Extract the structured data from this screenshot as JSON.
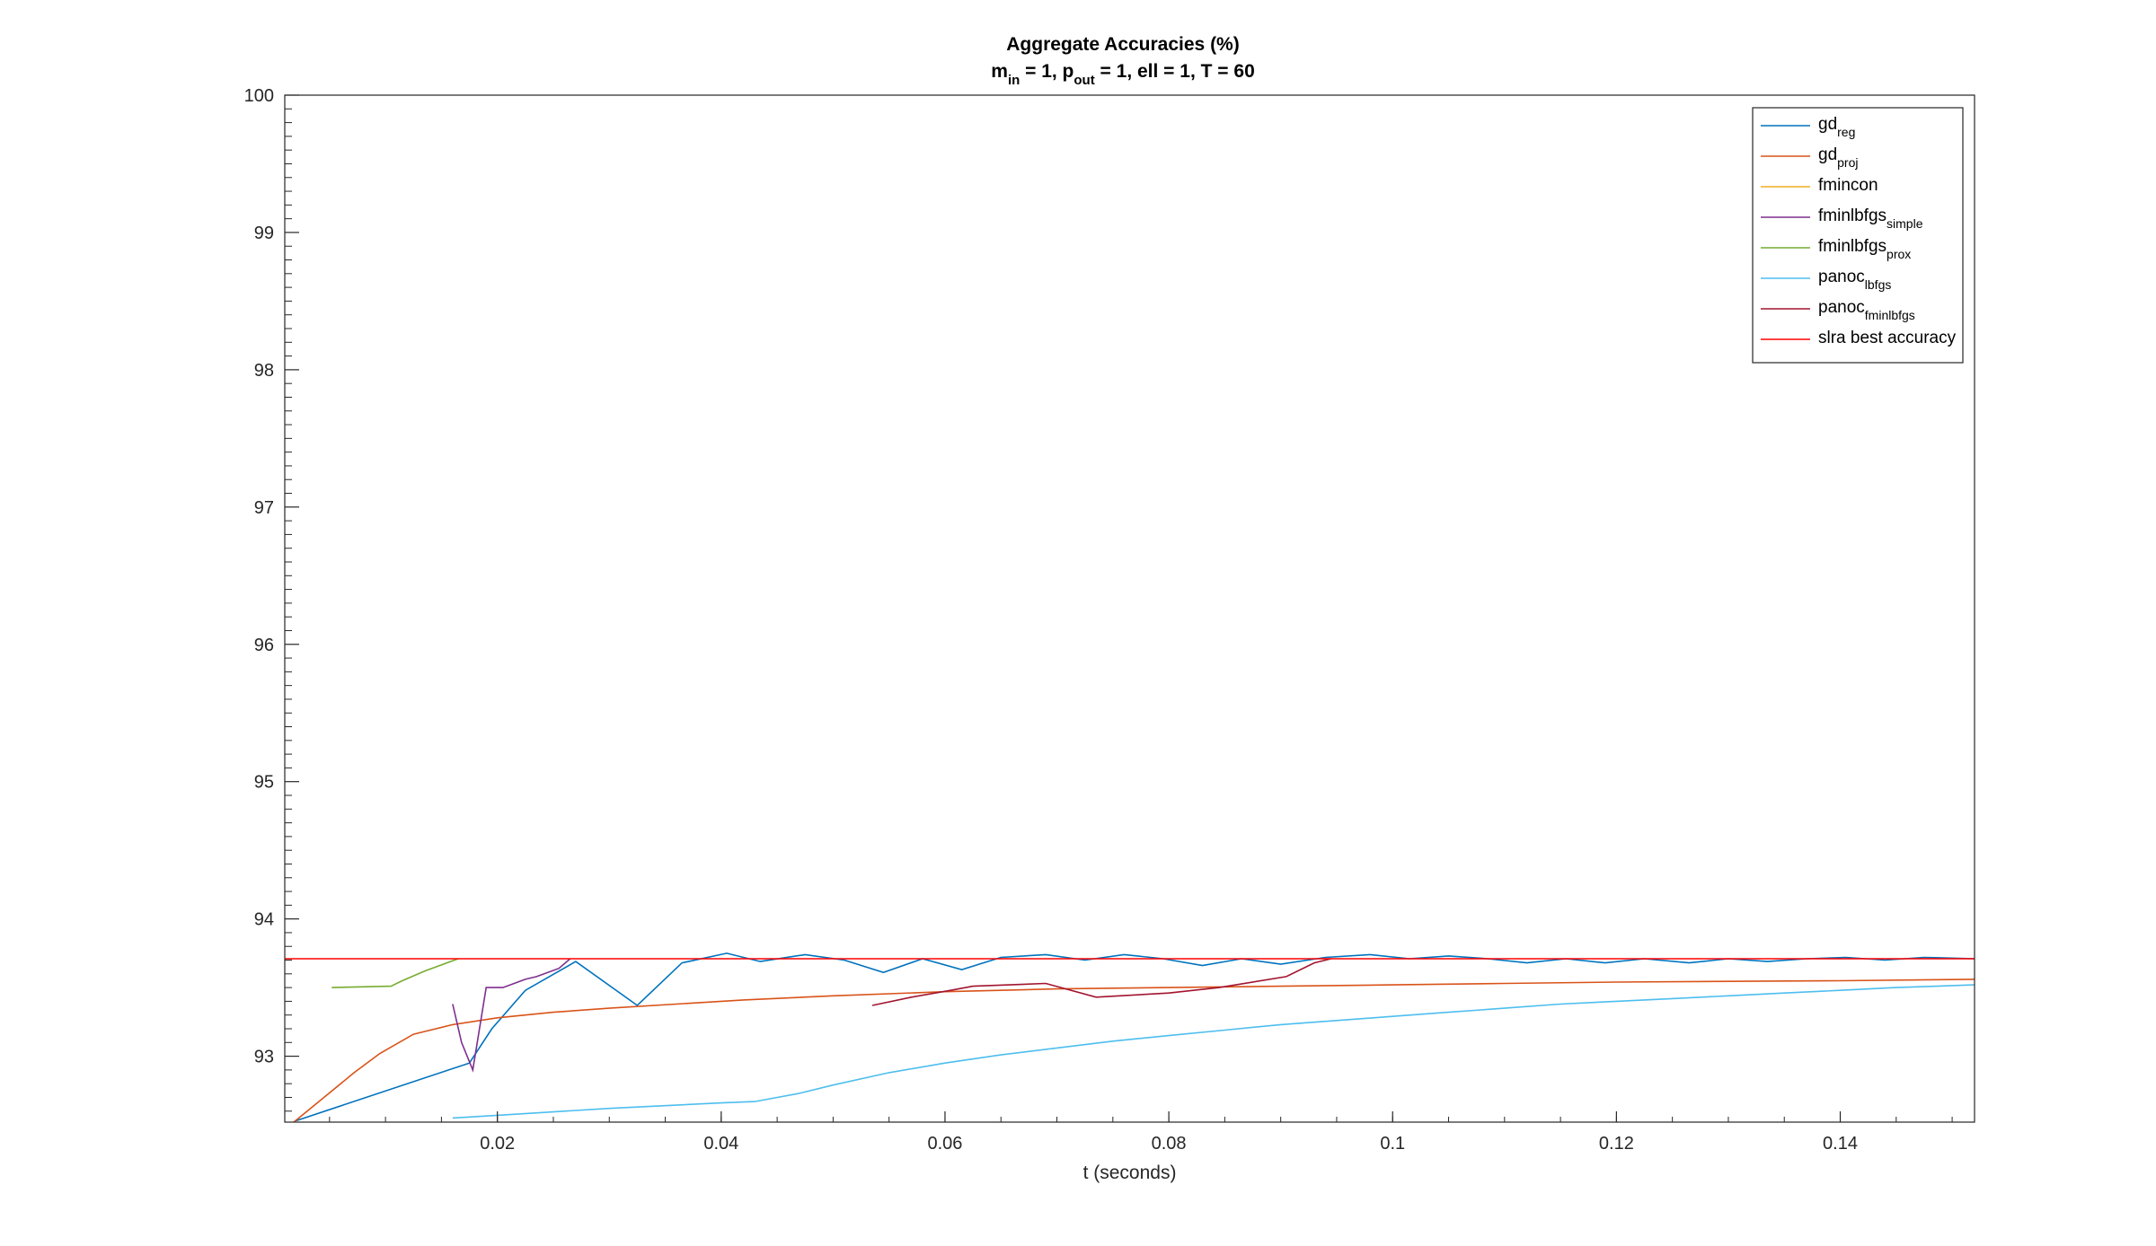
{
  "chart_data": {
    "type": "line",
    "title": "Aggregate Accuracies (%)",
    "subtitle": {
      "parts": [
        {
          "text": "m"
        },
        {
          "text": "in",
          "sub": true
        },
        {
          "text": " = 1, p"
        },
        {
          "text": "out",
          "sub": true
        },
        {
          "text": " = 1, ell = 1, T = 60"
        }
      ]
    },
    "xlabel": "t (seconds)",
    "ylabel": "",
    "xlim": [
      0.001,
      0.152
    ],
    "ylim": [
      92.52,
      100
    ],
    "xticks": [
      0.02,
      0.04,
      0.06,
      0.08,
      0.1,
      0.12,
      0.14
    ],
    "xtick_labels": [
      "0.02",
      "0.04",
      "0.06",
      "0.08",
      "0.1",
      "0.12",
      "0.14"
    ],
    "yticks": [
      93,
      94,
      95,
      96,
      97,
      98,
      99,
      100
    ],
    "ytick_labels": [
      "93",
      "94",
      "95",
      "96",
      "97",
      "98",
      "99",
      "100"
    ],
    "grid": false,
    "legend_position": "top-right",
    "series": [
      {
        "name": "gd",
        "sub": "reg",
        "color": "#0072BD",
        "x": [
          0.002,
          0.0175,
          0.0195,
          0.0225,
          0.027,
          0.0325,
          0.0365,
          0.0405,
          0.0435,
          0.0475,
          0.051,
          0.0545,
          0.058,
          0.0615,
          0.065,
          0.069,
          0.0725,
          0.076,
          0.0795,
          0.083,
          0.0865,
          0.09,
          0.094,
          0.098,
          0.1015,
          0.105,
          0.1085,
          0.112,
          0.1155,
          0.119,
          0.1225,
          0.1265,
          0.13,
          0.1335,
          0.137,
          0.1405,
          0.144,
          0.1475,
          0.152
        ],
        "y": [
          92.53,
          92.95,
          93.2,
          93.48,
          93.69,
          93.37,
          93.68,
          93.75,
          93.69,
          93.74,
          93.7,
          93.61,
          93.71,
          93.63,
          93.72,
          93.74,
          93.7,
          93.74,
          93.71,
          93.66,
          93.71,
          93.67,
          93.72,
          93.74,
          93.71,
          93.73,
          93.71,
          93.68,
          93.71,
          93.68,
          93.71,
          93.68,
          93.71,
          93.69,
          93.71,
          93.72,
          93.7,
          93.72,
          93.71
        ]
      },
      {
        "name": "gd",
        "sub": "proj",
        "color": "#D95319",
        "x": [
          0.0018,
          0.0045,
          0.0072,
          0.0095,
          0.0125,
          0.016,
          0.02,
          0.025,
          0.03,
          0.036,
          0.042,
          0.05,
          0.06,
          0.07,
          0.08,
          0.09,
          0.1,
          0.11,
          0.12,
          0.13,
          0.14,
          0.152
        ],
        "y": [
          92.52,
          92.7,
          92.88,
          93.02,
          93.16,
          93.23,
          93.28,
          93.32,
          93.35,
          93.38,
          93.41,
          93.44,
          93.47,
          93.49,
          93.5,
          93.51,
          93.52,
          93.53,
          93.54,
          93.545,
          93.55,
          93.56
        ]
      },
      {
        "name": "fmincon",
        "sub": "",
        "color": "#EDB120",
        "x": [],
        "y": []
      },
      {
        "name": "fminlbfgs",
        "sub": "simple",
        "color": "#7E2F8E",
        "x": [
          0.016,
          0.0168,
          0.0178,
          0.019,
          0.0205,
          0.0215,
          0.0225,
          0.0235,
          0.0255,
          0.0265
        ],
        "y": [
          93.38,
          93.1,
          92.9,
          93.5,
          93.5,
          93.53,
          93.56,
          93.58,
          93.64,
          93.71
        ]
      },
      {
        "name": "fminlbfgs",
        "sub": "prox",
        "color": "#77AC30",
        "x": [
          0.0052,
          0.0105,
          0.0115,
          0.0135,
          0.0165
        ],
        "y": [
          93.5,
          93.51,
          93.55,
          93.62,
          93.71
        ]
      },
      {
        "name": "panoc",
        "sub": "lbfgs",
        "color": "#4DBEEE",
        "x": [
          0.016,
          0.02,
          0.03,
          0.04,
          0.043,
          0.047,
          0.05,
          0.055,
          0.06,
          0.065,
          0.07,
          0.075,
          0.08,
          0.085,
          0.09,
          0.095,
          0.1,
          0.105,
          0.11,
          0.115,
          0.12,
          0.125,
          0.13,
          0.135,
          0.14,
          0.145,
          0.152
        ],
        "y": [
          92.55,
          92.57,
          92.62,
          92.66,
          92.67,
          92.73,
          92.79,
          92.88,
          92.95,
          93.01,
          93.06,
          93.11,
          93.15,
          93.19,
          93.23,
          93.26,
          93.29,
          93.32,
          93.35,
          93.38,
          93.4,
          93.42,
          93.44,
          93.46,
          93.48,
          93.5,
          93.52
        ]
      },
      {
        "name": "panoc",
        "sub": "fminlbfgs",
        "color": "#A2142F",
        "x": [
          0.0535,
          0.057,
          0.0605,
          0.0625,
          0.069,
          0.0735,
          0.08,
          0.0845,
          0.0905,
          0.093,
          0.0945
        ],
        "y": [
          93.37,
          93.43,
          93.48,
          93.51,
          93.53,
          93.43,
          93.46,
          93.5,
          93.58,
          93.68,
          93.71
        ]
      },
      {
        "name": "slra best accuracy",
        "sub": "",
        "color": "#FF0000",
        "x": [
          0.001,
          0.152
        ],
        "y": [
          93.71,
          93.71
        ]
      }
    ]
  }
}
